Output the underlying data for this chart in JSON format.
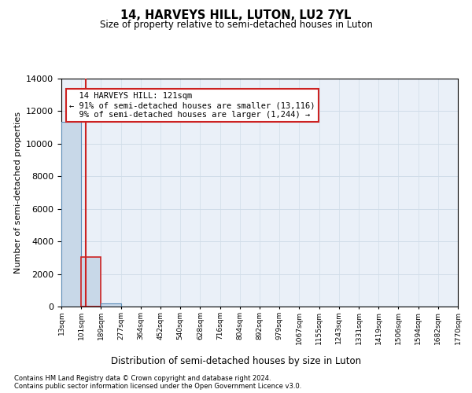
{
  "title": "14, HARVEYS HILL, LUTON, LU2 7YL",
  "subtitle": "Size of property relative to semi-detached houses in Luton",
  "xlabel": "Distribution of semi-detached houses by size in Luton",
  "ylabel": "Number of semi-detached properties",
  "property_size": 121,
  "property_label": "14 HARVEYS HILL: 121sqm",
  "pct_smaller": 91,
  "pct_larger": 9,
  "count_smaller": 13116,
  "count_larger": 1244,
  "bin_edges": [
    13,
    101,
    189,
    277,
    364,
    452,
    540,
    628,
    716,
    804,
    892,
    979,
    1067,
    1155,
    1243,
    1331,
    1419,
    1506,
    1594,
    1682,
    1770
  ],
  "bin_labels": [
    "13sqm",
    "101sqm",
    "189sqm",
    "277sqm",
    "364sqm",
    "452sqm",
    "540sqm",
    "628sqm",
    "716sqm",
    "804sqm",
    "892sqm",
    "979sqm",
    "1067sqm",
    "1155sqm",
    "1243sqm",
    "1331sqm",
    "1419sqm",
    "1506sqm",
    "1594sqm",
    "1682sqm",
    "1770sqm"
  ],
  "bar_heights": [
    11350,
    3050,
    200,
    0,
    0,
    0,
    0,
    0,
    0,
    0,
    0,
    0,
    0,
    0,
    0,
    0,
    0,
    0,
    0,
    0
  ],
  "bar_color": "#c8d8e8",
  "bar_edge_color": "#5b8db8",
  "highlight_bar_edge_color": "#cc2222",
  "annotation_box_color": "#cc2222",
  "grid_color": "#d0dce8",
  "background_color": "#eaf0f8",
  "ylim": [
    0,
    14000
  ],
  "yticks": [
    0,
    2000,
    4000,
    6000,
    8000,
    10000,
    12000,
    14000
  ],
  "footnote1": "Contains HM Land Registry data © Crown copyright and database right 2024.",
  "footnote2": "Contains public sector information licensed under the Open Government Licence v3.0."
}
